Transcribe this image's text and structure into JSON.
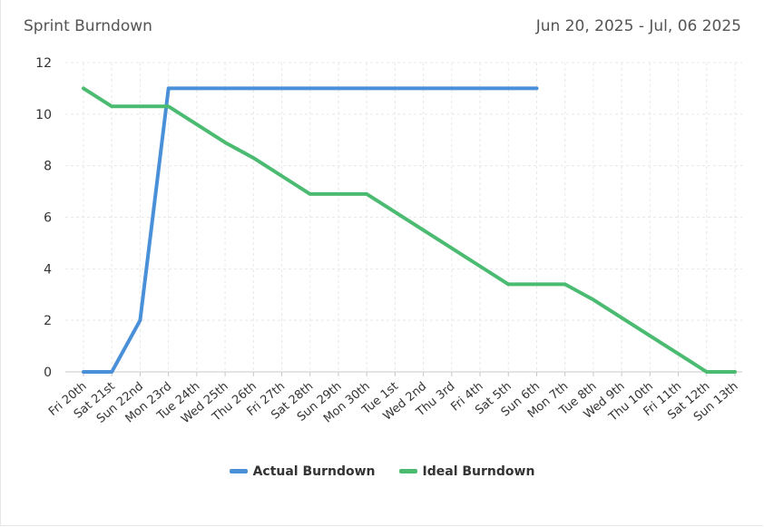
{
  "header": {
    "title": "Sprint Burndown",
    "date_range": "Jun 20, 2025 - Jul, 06 2025"
  },
  "colors": {
    "actual": "#4a90d9",
    "ideal": "#4cbb72",
    "grid": "#e8e8e8",
    "axis": "#c8c8c8",
    "text": "#333333"
  },
  "chart_data": {
    "type": "line",
    "categories": [
      "Fri 20th",
      "Sat 21st",
      "Sun 22nd",
      "Mon 23rd",
      "Tue 24th",
      "Wed 25th",
      "Thu 26th",
      "Fri 27th",
      "Sat 28th",
      "Sun 29th",
      "Mon 30th",
      "Tue 1st",
      "Wed 2nd",
      "Thu 3rd",
      "Fri 4th",
      "Sat 5th",
      "Sun 6th",
      "Mon 7th",
      "Tue 8th",
      "Wed 9th",
      "Thu 10th",
      "Fri 11th",
      "Sat 12th",
      "Sun 13th"
    ],
    "ylim": [
      0,
      12
    ],
    "yticks": [
      0,
      2,
      4,
      6,
      8,
      10,
      12
    ],
    "grid": true,
    "legend_position": "bottom-center",
    "series": [
      {
        "name": "Actual Burndown",
        "color_key": "actual",
        "values": [
          0,
          0,
          2,
          11,
          11,
          11,
          11,
          11,
          11,
          11,
          11,
          11,
          11,
          11,
          11,
          11,
          11,
          null,
          null,
          null,
          null,
          null,
          null,
          null
        ]
      },
      {
        "name": "Ideal Burndown",
        "color_key": "ideal",
        "values": [
          11,
          10.3,
          10.3,
          10.3,
          9.6,
          8.9,
          8.3,
          7.6,
          6.9,
          6.9,
          6.9,
          6.2,
          5.5,
          4.8,
          4.1,
          3.4,
          3.4,
          3.4,
          2.8,
          2.1,
          1.4,
          0.7,
          0,
          0
        ]
      }
    ]
  }
}
